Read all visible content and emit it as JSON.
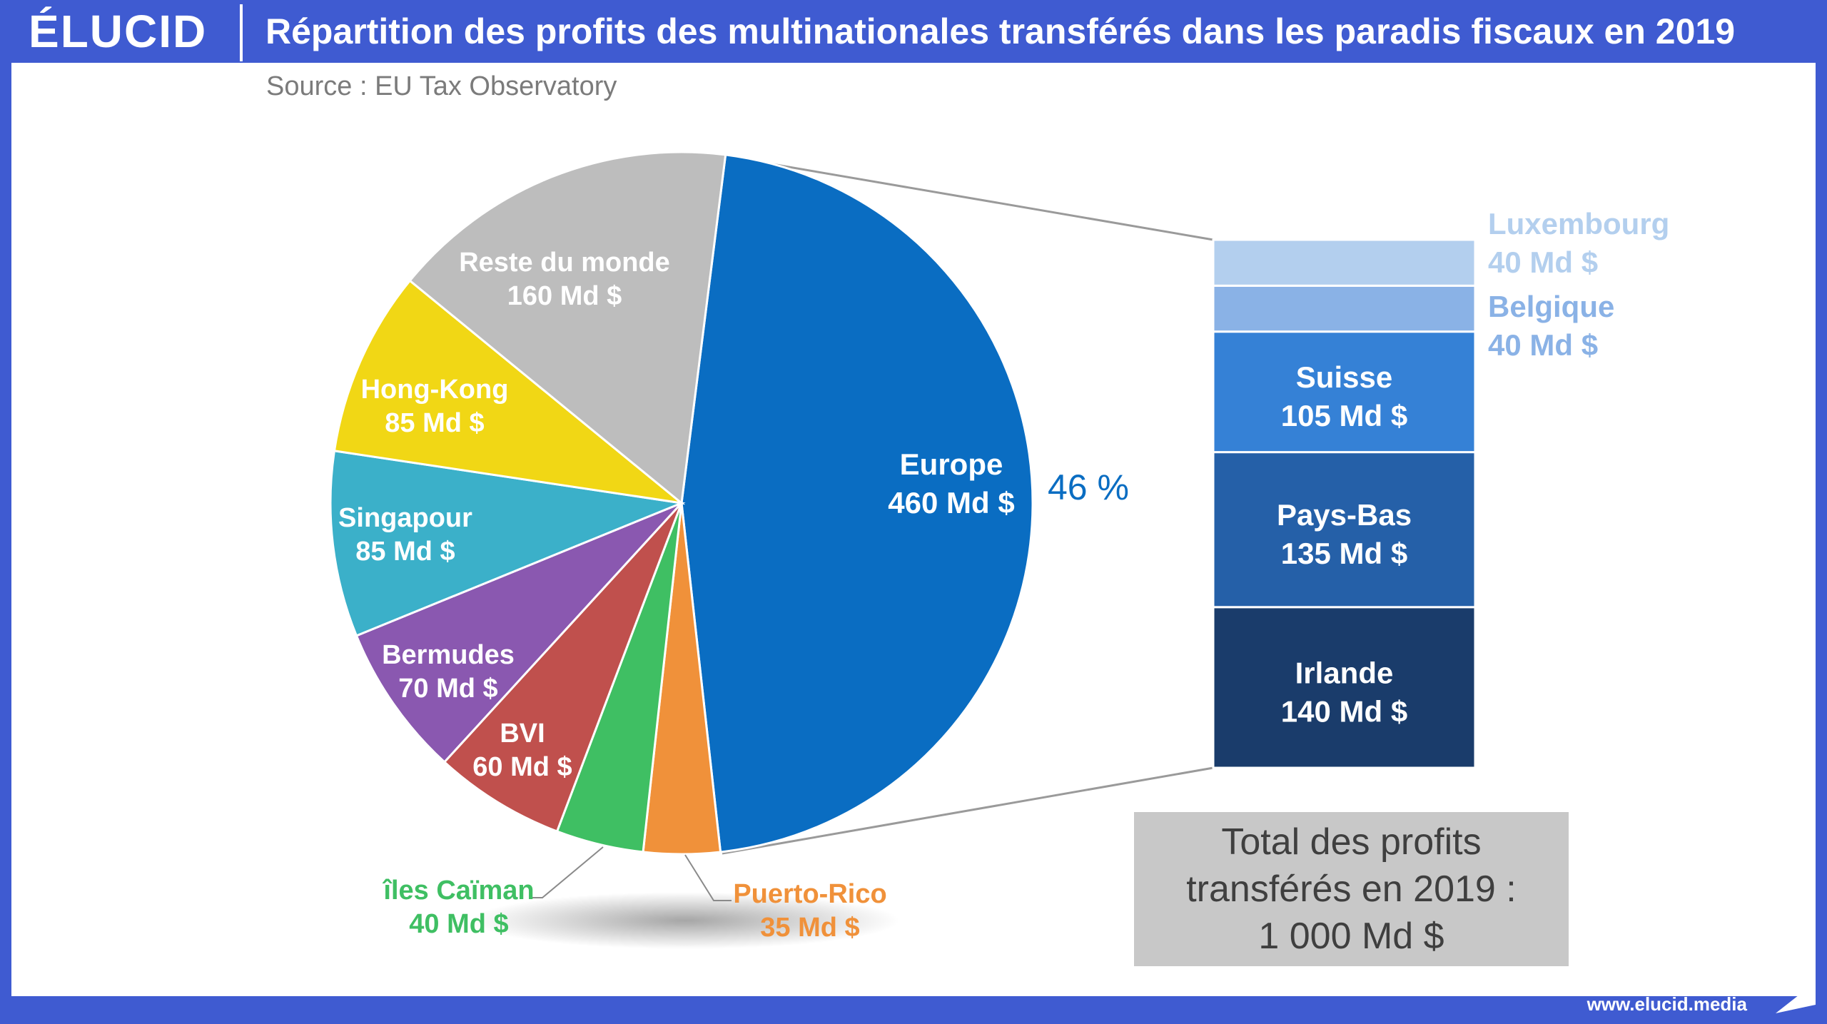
{
  "header": {
    "logo": "ÉLUCID",
    "title": "Répartition des profits des multinationales transférés dans les paradis fiscaux en 2019"
  },
  "subtitle": "Source : EU Tax Observatory",
  "chart_data": [
    {
      "type": "pie",
      "title": "Répartition des profits des multinationales transférés dans les paradis fiscaux en 2019",
      "unit": "Md $",
      "slices": [
        {
          "name": "Europe",
          "value": 460,
          "color": "#0a6dc2",
          "label_line2": "460 Md $",
          "percent_label": "46 %"
        },
        {
          "name": "Puerto-Rico",
          "value": 35,
          "color": "#f0913a",
          "label_line2": "35 Md $"
        },
        {
          "name": "îles Caïman",
          "value": 40,
          "color": "#3fbf63",
          "label_line2": "40 Md $"
        },
        {
          "name": "BVI",
          "value": 60,
          "color": "#c0504d",
          "label_line2": "60 Md $"
        },
        {
          "name": "Bermudes",
          "value": 70,
          "color": "#8a58b0",
          "label_line2": "70 Md $"
        },
        {
          "name": "Singapour",
          "value": 85,
          "color": "#3bb0c9",
          "label_line2": "85 Md $"
        },
        {
          "name": "Hong-Kong",
          "value": 85,
          "color": "#f1d715",
          "label_line2": "85 Md $"
        },
        {
          "name": "Reste du monde",
          "value": 160,
          "color": "#bdbdbd",
          "label_line2": "160 Md $"
        }
      ]
    },
    {
      "type": "bar",
      "stacked": true,
      "title": "Europe",
      "unit": "Md $",
      "segments": [
        {
          "name": "Irlande",
          "value": 140,
          "color": "#1a3c6b",
          "label_line2": "140 Md $"
        },
        {
          "name": "Pays-Bas",
          "value": 135,
          "color": "#2560a8",
          "label_line2": "135 Md $"
        },
        {
          "name": "Suisse",
          "value": 105,
          "color": "#3581d6",
          "label_line2": "105 Md $"
        },
        {
          "name": "Belgique",
          "value": 40,
          "color": "#8ab2e6",
          "label_line2": "40 Md $"
        },
        {
          "name": "Luxembourg",
          "value": 40,
          "color": "#b3cfee",
          "label_line2": "40 Md $"
        }
      ]
    }
  ],
  "total": {
    "line1": "Total des profits",
    "line2": "transférés en 2019 :",
    "line3": "1 000 Md $"
  },
  "footer": {
    "url": "www.elucid.media"
  }
}
